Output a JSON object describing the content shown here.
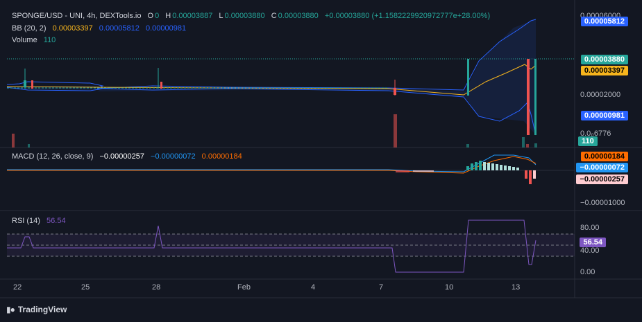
{
  "header": {
    "symbol": "SPONGE/USD - UNI, 4h, DEXTools.io",
    "o_label": "O",
    "o_value": "0",
    "h_label": "H",
    "h_value": "0.00003887",
    "l_label": "L",
    "l_value": "0.00003880",
    "c_label": "C",
    "c_value": "0.00003880",
    "change": "+0.00003880 (+1.1582229920972777e+28.00%)"
  },
  "bb": {
    "label": "BB (20, 2)",
    "basis": "0.00003397",
    "upper": "0.00005812",
    "lower": "0.00000981"
  },
  "volume": {
    "label": "Volume",
    "value": "110"
  },
  "macd": {
    "label": "MACD (12, 26, close, 9)",
    "hist": "−0.00000257",
    "macd": "−0.00000072",
    "signal": "0.00000184"
  },
  "rsi": {
    "label": "RSI (14)",
    "value": "56.54"
  },
  "price_tags": {
    "upper": "0.00005812",
    "close": "0.00003880",
    "basis": "0.00003397",
    "lower": "0.00000981",
    "volume": "110"
  },
  "price_axis": {
    "top": "0.00006000",
    "mid": "0.00002000",
    "bottom": "0.0₀6776"
  },
  "macd_tags": {
    "signal": "0.00000184",
    "macd": "−0.00000072",
    "hist": "−0.00000257"
  },
  "macd_axis": {
    "low": "−0.00001000"
  },
  "rsi_axis": {
    "t80": "80.00",
    "t40": "40.00",
    "t0": "0.00",
    "value": "56.54"
  },
  "time_axis": [
    "22",
    "25",
    "28",
    "Feb",
    "4",
    "7",
    "10",
    "13"
  ],
  "brand": "TradingView",
  "colors": {
    "background": "#131722",
    "up": "#26a69a",
    "down": "#ef5350",
    "bb_band": "#2962ff",
    "bb_basis": "#f7b51d",
    "macd_line": "#2196f3",
    "signal_line": "#ff6d00",
    "rsi_line": "#7e57c2"
  },
  "chart_data": {
    "type": "candlestick",
    "x_ticks": [
      "22",
      "25",
      "28",
      "Feb",
      "4",
      "7",
      "10",
      "13"
    ],
    "price_series": {
      "name": "SPONGE/USD",
      "flat_level": 2e-05,
      "final_close": 3.88e-05,
      "final_high": 3.887e-05
    },
    "bollinger": {
      "basis": 3.397e-05,
      "upper": 5.812e-05,
      "lower": 9.81e-06
    },
    "volume_last": 110,
    "macd": {
      "macd": -7.2e-07,
      "signal": 1.84e-06,
      "hist": -2.57e-06
    },
    "rsi": {
      "value": 56.54,
      "levels": [
        80,
        40,
        0
      ]
    }
  }
}
